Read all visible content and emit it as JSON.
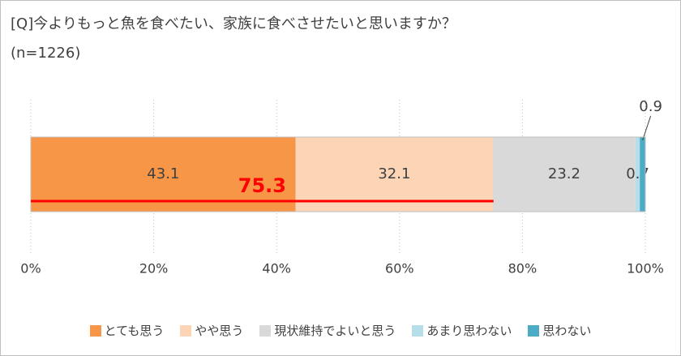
{
  "chart_data": {
    "type": "stacked-bar-horizontal",
    "title": "[Q]今よりもっと魚を食べたい、家族に食べさせたいと思いますか？",
    "subtitle": "(n=1226)",
    "series": [
      {
        "name": "とても思う",
        "color": "#f79646",
        "values": [
          43.1
        ]
      },
      {
        "name": "やや思う",
        "color": "#fbd5b5",
        "values": [
          32.1
        ]
      },
      {
        "name": "現状維持でよいと思う",
        "color": "#d9d9d9",
        "values": [
          23.2
        ]
      },
      {
        "name": "あまり思わない",
        "color": "#b7dee8",
        "values": [
          0.7
        ]
      },
      {
        "name": "思わない",
        "color": "#4bacc6",
        "values": [
          0.9
        ]
      }
    ],
    "annotation": {
      "value": 75.3,
      "color": "#ff0000"
    },
    "xlim": [
      0,
      100
    ],
    "xticks": [
      {
        "value": 0,
        "label": "0%"
      },
      {
        "value": 20,
        "label": "20%"
      },
      {
        "value": 40,
        "label": "40%"
      },
      {
        "value": 60,
        "label": "60%"
      },
      {
        "value": 80,
        "label": "80%"
      },
      {
        "value": 100,
        "label": "100%"
      }
    ],
    "grid": true,
    "legend": "bottom"
  }
}
